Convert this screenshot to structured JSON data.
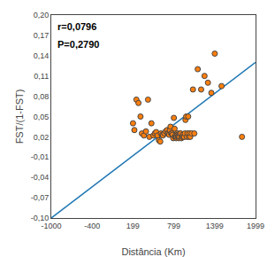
{
  "chart_data": {
    "type": "scatter",
    "xlabel": "Distância (Km)",
    "ylabel": "FST/(1-FST)",
    "xlim": [
      -1000,
      1999
    ],
    "ylim": [
      -0.1,
      0.2
    ],
    "xticks": [
      -1000,
      -400,
      199,
      799,
      1399,
      1999
    ],
    "yticks": [
      {
        "value": -0.1,
        "label": "-0,10"
      },
      {
        "value": -0.07,
        "label": "-0,07"
      },
      {
        "value": -0.04,
        "label": "-0,04"
      },
      {
        "value": -0.01,
        "label": "-0,01"
      },
      {
        "value": 0.02,
        "label": "0,02"
      },
      {
        "value": 0.05,
        "label": "0,05"
      },
      {
        "value": 0.08,
        "label": "0,08"
      },
      {
        "value": 0.11,
        "label": "0,11"
      },
      {
        "value": 0.14,
        "label": "0,14"
      },
      {
        "value": 0.17,
        "label": "0,17"
      },
      {
        "value": 0.2,
        "label": "0,20"
      }
    ],
    "grid": false,
    "annotations": [
      "r=0,0796",
      "P=0,2790"
    ],
    "series": [
      {
        "type": "line",
        "line_style": "solid",
        "x": [
          -1000,
          1999
        ],
        "values": [
          -0.1,
          0.13
        ]
      },
      {
        "type": "scatter",
        "marker": "circle",
        "x": [
          200,
          220,
          250,
          280,
          310,
          330,
          360,
          390,
          420,
          440,
          470,
          500,
          520,
          540,
          560,
          580,
          600,
          610,
          630,
          640,
          660,
          680,
          700,
          710,
          720,
          730,
          740,
          750,
          760,
          770,
          780,
          790,
          800,
          810,
          815,
          820,
          830,
          835,
          840,
          850,
          855,
          860,
          870,
          875,
          880,
          890,
          900,
          910,
          920,
          930,
          940,
          950,
          960,
          970,
          980,
          990,
          1000,
          1010,
          1020,
          1030,
          1040,
          1060,
          1080,
          1100,
          1150,
          1200,
          1250,
          1300,
          1350,
          1400,
          1500,
          1800
        ],
        "values": [
          0.04,
          0.03,
          0.075,
          0.07,
          0.05,
          0.025,
          0.022,
          0.028,
          0.075,
          0.02,
          0.04,
          0.022,
          0.025,
          0.027,
          0.022,
          0.015,
          0.013,
          0.025,
          0.023,
          0.022,
          0.025,
          0.028,
          0.03,
          0.025,
          0.025,
          0.023,
          0.03,
          0.035,
          0.025,
          0.025,
          0.023,
          0.018,
          0.048,
          0.032,
          0.02,
          0.02,
          0.023,
          0.018,
          0.02,
          0.025,
          0.023,
          0.02,
          0.022,
          0.018,
          0.02,
          0.025,
          0.025,
          0.018,
          0.02,
          0.023,
          0.02,
          0.02,
          0.025,
          0.045,
          0.05,
          0.02,
          0.025,
          0.05,
          0.02,
          0.025,
          0.02,
          0.025,
          0.09,
          0.025,
          0.12,
          0.09,
          0.11,
          0.1,
          0.085,
          0.143,
          0.095,
          0.02
        ]
      }
    ]
  }
}
